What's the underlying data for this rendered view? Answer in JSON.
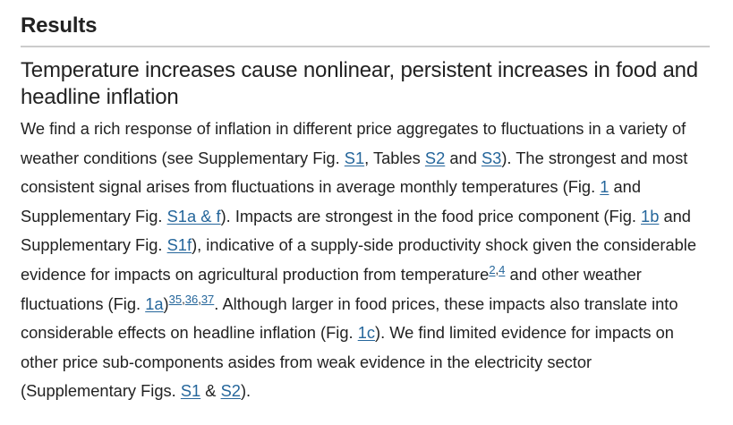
{
  "section": {
    "title": "Results"
  },
  "subsection": {
    "title": "Temperature increases cause nonlinear, persistent increases in food and headline inflation"
  },
  "paragraph": {
    "t1": "We find a rich response of inflation in different price aggregates to fluctuations in a variety of weather conditions (see Supplementary Fig. ",
    "l1": "S1",
    "t2": ", Tables ",
    "l2": "S2",
    "t3": " and ",
    "l3": "S3",
    "t4": "). The strongest and most consistent signal arises from fluctuations in average monthly temperatures (Fig. ",
    "l4": "1",
    "t5": " and Supplementary Fig. ",
    "l5": "S1a & f",
    "t6": "). Impacts are strongest in the food price component (Fig. ",
    "l6": "1b",
    "t7": " and Supplementary Fig. ",
    "l7": "S1f",
    "t8": "), indicative of a supply-side productivity shock given the considerable evidence for impacts on agricultural production from temperature",
    "s1": "2",
    "c1": ",",
    "s2": "4",
    "t9": " and other weather fluctuations (Fig. ",
    "l8": "1a",
    "t10": ")",
    "s3": "35",
    "c2": ",",
    "s4": "36",
    "c3": ",",
    "s5": "37",
    "t11": ". Although larger in food prices, these impacts also translate into considerable effects on headline inflation (Fig. ",
    "l9": "1c",
    "t12": "). We find limited evidence for impacts on other price sub-components asides from weak evidence in the electricity sector (Supplementary Figs. ",
    "l10": "S1",
    "t13": " & ",
    "l11": "S2",
    "t14": ")."
  },
  "colors": {
    "text": "#222222",
    "link": "#25669b",
    "rule": "#cccccc"
  }
}
